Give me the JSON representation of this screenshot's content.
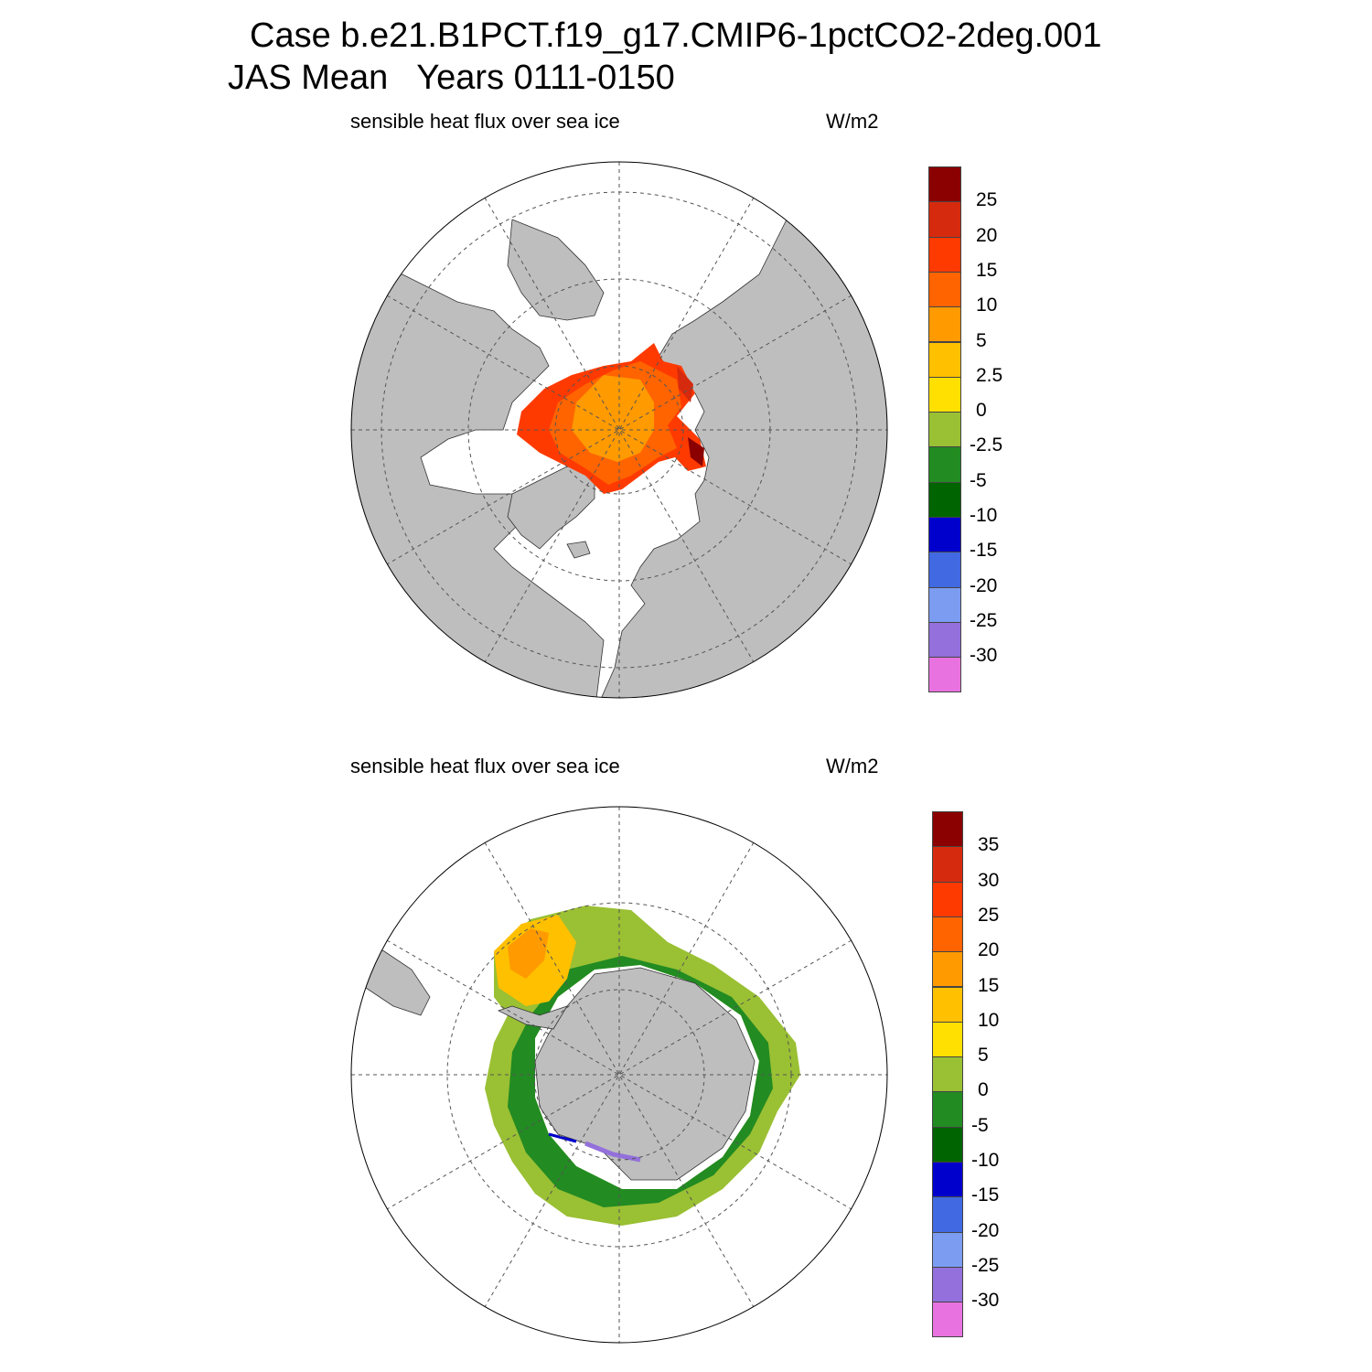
{
  "title": {
    "line1": "Case b.e21.B1PCT.f19_g17.CMIP6-1pctCO2-2deg.001",
    "line2": "JAS Mean   Years 0111-0150"
  },
  "colors": {
    "land": "#bebebe",
    "ocean": "#ffffff",
    "grid": "#555555"
  },
  "panels": [
    {
      "id": "nh",
      "hemisphere": "north",
      "label": "sensible heat flux over sea ice",
      "units": "W/m2",
      "colorbar": {
        "labels": [
          "25",
          "20",
          "15",
          "10",
          "5",
          "2.5",
          "0",
          "-2.5",
          "-5",
          "-10",
          "-15",
          "-20",
          "-25",
          "-30"
        ],
        "colors": [
          "#8b0000",
          "#d62a0e",
          "#ff3a00",
          "#ff6400",
          "#ff9a00",
          "#ffc000",
          "#ffe000",
          "#9ac033",
          "#228b22",
          "#006400",
          "#0000cd",
          "#4169e1",
          "#7b9cf0",
          "#9370db",
          "#e873e0"
        ]
      }
    },
    {
      "id": "sh",
      "hemisphere": "south",
      "label": "sensible heat flux over sea ice",
      "units": "W/m2",
      "colorbar": {
        "labels": [
          "35",
          "30",
          "25",
          "20",
          "15",
          "10",
          "5",
          "0",
          "-5",
          "-10",
          "-15",
          "-20",
          "-25",
          "-30"
        ],
        "colors": [
          "#8b0000",
          "#d62a0e",
          "#ff3a00",
          "#ff6400",
          "#ff9a00",
          "#ffc000",
          "#ffe000",
          "#9ac033",
          "#228b22",
          "#006400",
          "#0000cd",
          "#4169e1",
          "#7b9cf0",
          "#9370db",
          "#e873e0"
        ]
      }
    }
  ]
}
